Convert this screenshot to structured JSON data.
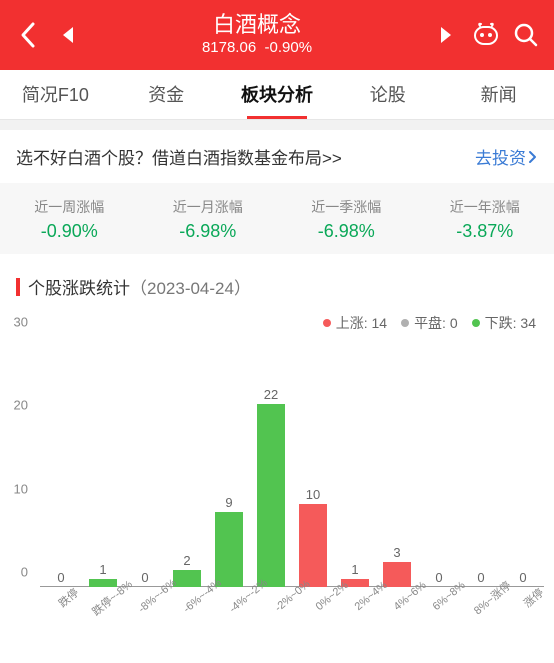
{
  "header": {
    "title": "白酒概念",
    "index_value": "8178.06",
    "change_pct": "-0.90%"
  },
  "tabs": [
    {
      "label": "简况F10",
      "active": false
    },
    {
      "label": "资金",
      "active": false
    },
    {
      "label": "板块分析",
      "active": true
    },
    {
      "label": "论股",
      "active": false
    },
    {
      "label": "新闻",
      "active": false
    }
  ],
  "promo": {
    "text": "选不好白酒个股？借道白酒指数基金布局>>",
    "link_label": "去投资"
  },
  "period_stats": [
    {
      "label": "近一周涨幅",
      "value": "-0.90%",
      "dir": "down"
    },
    {
      "label": "近一月涨幅",
      "value": "-6.98%",
      "dir": "down"
    },
    {
      "label": "近一季涨幅",
      "value": "-6.98%",
      "dir": "down"
    },
    {
      "label": "近一年涨幅",
      "value": "-3.87%",
      "dir": "down"
    }
  ],
  "section": {
    "title": "个股涨跌统计",
    "date": "（2023-04-24）"
  },
  "legend": {
    "up_label": "上涨:",
    "up_count": "14",
    "flat_label": "平盘:",
    "flat_count": "0",
    "down_label": "下跌:",
    "down_count": "34"
  },
  "chart": {
    "type": "bar",
    "ymax": 30,
    "yticks": [
      0,
      10,
      20,
      30
    ],
    "bars": [
      {
        "label": "0",
        "x": "跌停",
        "color": "green"
      },
      {
        "label": "1",
        "x": "跌停~-8%",
        "color": "green"
      },
      {
        "label": "0",
        "x": "-8%~-6%",
        "color": "green"
      },
      {
        "label": "2",
        "x": "-6%~-4%",
        "color": "green"
      },
      {
        "label": "9",
        "x": "-4%~-2%",
        "color": "green"
      },
      {
        "label": "22",
        "x": "-2%~0%",
        "color": "green"
      },
      {
        "label": "10",
        "x": "0%~2%",
        "color": "red"
      },
      {
        "label": "1",
        "x": "2%~4%",
        "color": "red"
      },
      {
        "label": "3",
        "x": "4%~6%",
        "color": "red"
      },
      {
        "label": "0",
        "x": "6%~8%",
        "color": "red"
      },
      {
        "label": "0",
        "x": "8%~涨停",
        "color": "red"
      },
      {
        "label": "0",
        "x": "涨停",
        "color": "red"
      }
    ],
    "colors": {
      "green": "#52c450",
      "red": "#f55a5a",
      "axis": "#999999",
      "label": "#888888"
    }
  }
}
